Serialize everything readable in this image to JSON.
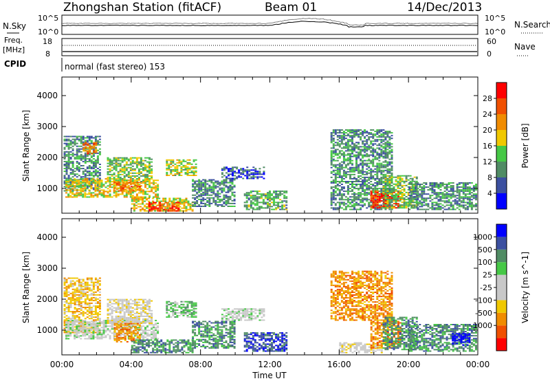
{
  "header": {
    "title": "Zhongshan Station (fitACF)",
    "beam": "Beam 01",
    "date": "14/Dec/2013"
  },
  "noise_panel": {
    "left_label": "N.Sky",
    "right_label": "N.Search",
    "left_ticks": [
      "10^5",
      "10^0"
    ],
    "right_ticks": [
      "10^5",
      "10^0"
    ]
  },
  "freq_panel": {
    "left_label_1": "Freq.",
    "left_label_2": "[MHz]",
    "left_ticks": [
      "18",
      "8"
    ],
    "right_label": "Nave",
    "right_ticks": [
      "60",
      "0"
    ]
  },
  "cpid": {
    "label": "CPID",
    "value": "normal (fast stereo) 153"
  },
  "x_axis": {
    "label": "Time UT",
    "ticks": [
      "00:00",
      "04:00",
      "08:00",
      "12:00",
      "16:00",
      "20:00",
      "00:00"
    ]
  },
  "colors": {
    "power": [
      "#0000ff",
      "#3c50a0",
      "#508c64",
      "#46c846",
      "#f0c800",
      "#f08c00",
      "#f05000",
      "#ff0000"
    ],
    "velocity": [
      "#ff0000",
      "#f05000",
      "#f08c00",
      "#f0c800",
      "#c8c8c8",
      "#c8c8c8",
      "#46c846",
      "#508c64",
      "#3c50a0",
      "#0000ff"
    ],
    "velocity_gray": "#c8c8c8"
  },
  "chart_data": [
    {
      "type": "heatmap",
      "name_label": "Power",
      "ylabel": "Slant Range [km]",
      "xlabel": "Time UT",
      "y_ticks": [
        "4000",
        "3000",
        "2000",
        "1000"
      ],
      "ylim": [
        200,
        4600
      ],
      "xlim_hours": [
        0,
        24
      ],
      "colorbar_title": "Power [dB]",
      "colorbar_ticks": [
        "28",
        "24",
        "20",
        "16",
        "12",
        "8",
        "4"
      ],
      "colorbar_range": [
        0,
        32
      ],
      "regions": [
        {
          "t0": 0.1,
          "t1": 2.2,
          "r0": 900,
          "r1": 2700,
          "v": 10
        },
        {
          "t0": 1.2,
          "t1": 2.0,
          "r0": 2100,
          "r1": 2500,
          "v": 24
        },
        {
          "t0": 2.6,
          "t1": 5.2,
          "r0": 1200,
          "r1": 2000,
          "v": 14
        },
        {
          "t0": 0.2,
          "t1": 5.5,
          "r0": 700,
          "r1": 1300,
          "v": 18
        },
        {
          "t0": 3.0,
          "t1": 4.5,
          "r0": 900,
          "r1": 1200,
          "v": 24
        },
        {
          "t0": 4.0,
          "t1": 7.5,
          "r0": 250,
          "r1": 700,
          "v": 18
        },
        {
          "t0": 5.0,
          "t1": 6.8,
          "r0": 250,
          "r1": 550,
          "v": 28
        },
        {
          "t0": 6.0,
          "t1": 7.8,
          "r0": 1400,
          "r1": 1900,
          "v": 16
        },
        {
          "t0": 7.5,
          "t1": 10.0,
          "r0": 400,
          "r1": 1300,
          "v": 10
        },
        {
          "t0": 9.2,
          "t1": 11.6,
          "r0": 1300,
          "r1": 1700,
          "v": 6
        },
        {
          "t0": 10.5,
          "t1": 13.0,
          "r0": 300,
          "r1": 900,
          "v": 12
        },
        {
          "t0": 15.5,
          "t1": 19.0,
          "r0": 300,
          "r1": 2900,
          "v": 10
        },
        {
          "t0": 17.8,
          "t1": 19.5,
          "r0": 350,
          "r1": 900,
          "v": 28
        },
        {
          "t0": 18.5,
          "t1": 20.5,
          "r0": 350,
          "r1": 1400,
          "v": 14
        },
        {
          "t0": 20.0,
          "t1": 23.9,
          "r0": 300,
          "r1": 1200,
          "v": 10
        }
      ]
    },
    {
      "type": "heatmap",
      "name_label": "Velocity",
      "ylabel": "Slant Range [km]",
      "xlabel": "Time UT",
      "y_ticks": [
        "4000",
        "3000",
        "2000",
        "1000"
      ],
      "ylim": [
        200,
        4600
      ],
      "xlim_hours": [
        0,
        24
      ],
      "colorbar_title": "Velocity [m s^-1]",
      "colorbar_ticks": [
        "1000",
        "500",
        "100",
        "25",
        "-25",
        "-100",
        "-500",
        "-1000"
      ],
      "regions": [
        {
          "t0": 0.1,
          "t1": 2.2,
          "r0": 900,
          "r1": 2700,
          "v": 3
        },
        {
          "t0": 0.2,
          "t1": 5.5,
          "r0": 700,
          "r1": 1300,
          "v": 5
        },
        {
          "t0": 2.6,
          "t1": 5.2,
          "r0": 1200,
          "r1": 2000,
          "v": 4
        },
        {
          "t0": 3.0,
          "t1": 4.5,
          "r0": 600,
          "r1": 1200,
          "v": 2
        },
        {
          "t0": 4.0,
          "t1": 7.5,
          "r0": 250,
          "r1": 700,
          "v": 7
        },
        {
          "t0": 6.0,
          "t1": 7.8,
          "r0": 1400,
          "r1": 1900,
          "v": 6
        },
        {
          "t0": 7.5,
          "t1": 10.0,
          "r0": 400,
          "r1": 1300,
          "v": 7
        },
        {
          "t0": 9.2,
          "t1": 11.6,
          "r0": 1300,
          "r1": 1700,
          "v": 5
        },
        {
          "t0": 10.5,
          "t1": 13.0,
          "r0": 300,
          "r1": 900,
          "v": 8
        },
        {
          "t0": 15.5,
          "t1": 19.0,
          "r0": 1300,
          "r1": 2900,
          "v": 2
        },
        {
          "t0": 16.0,
          "t1": 18.5,
          "r0": 250,
          "r1": 600,
          "v": 4
        },
        {
          "t0": 17.8,
          "t1": 19.5,
          "r0": 400,
          "r1": 1300,
          "v": 2
        },
        {
          "t0": 18.5,
          "t1": 20.5,
          "r0": 350,
          "r1": 1400,
          "v": 7
        },
        {
          "t0": 20.0,
          "t1": 23.9,
          "r0": 300,
          "r1": 1200,
          "v": 7
        },
        {
          "t0": 22.5,
          "t1": 23.5,
          "r0": 500,
          "r1": 900,
          "v": 9
        }
      ]
    }
  ]
}
